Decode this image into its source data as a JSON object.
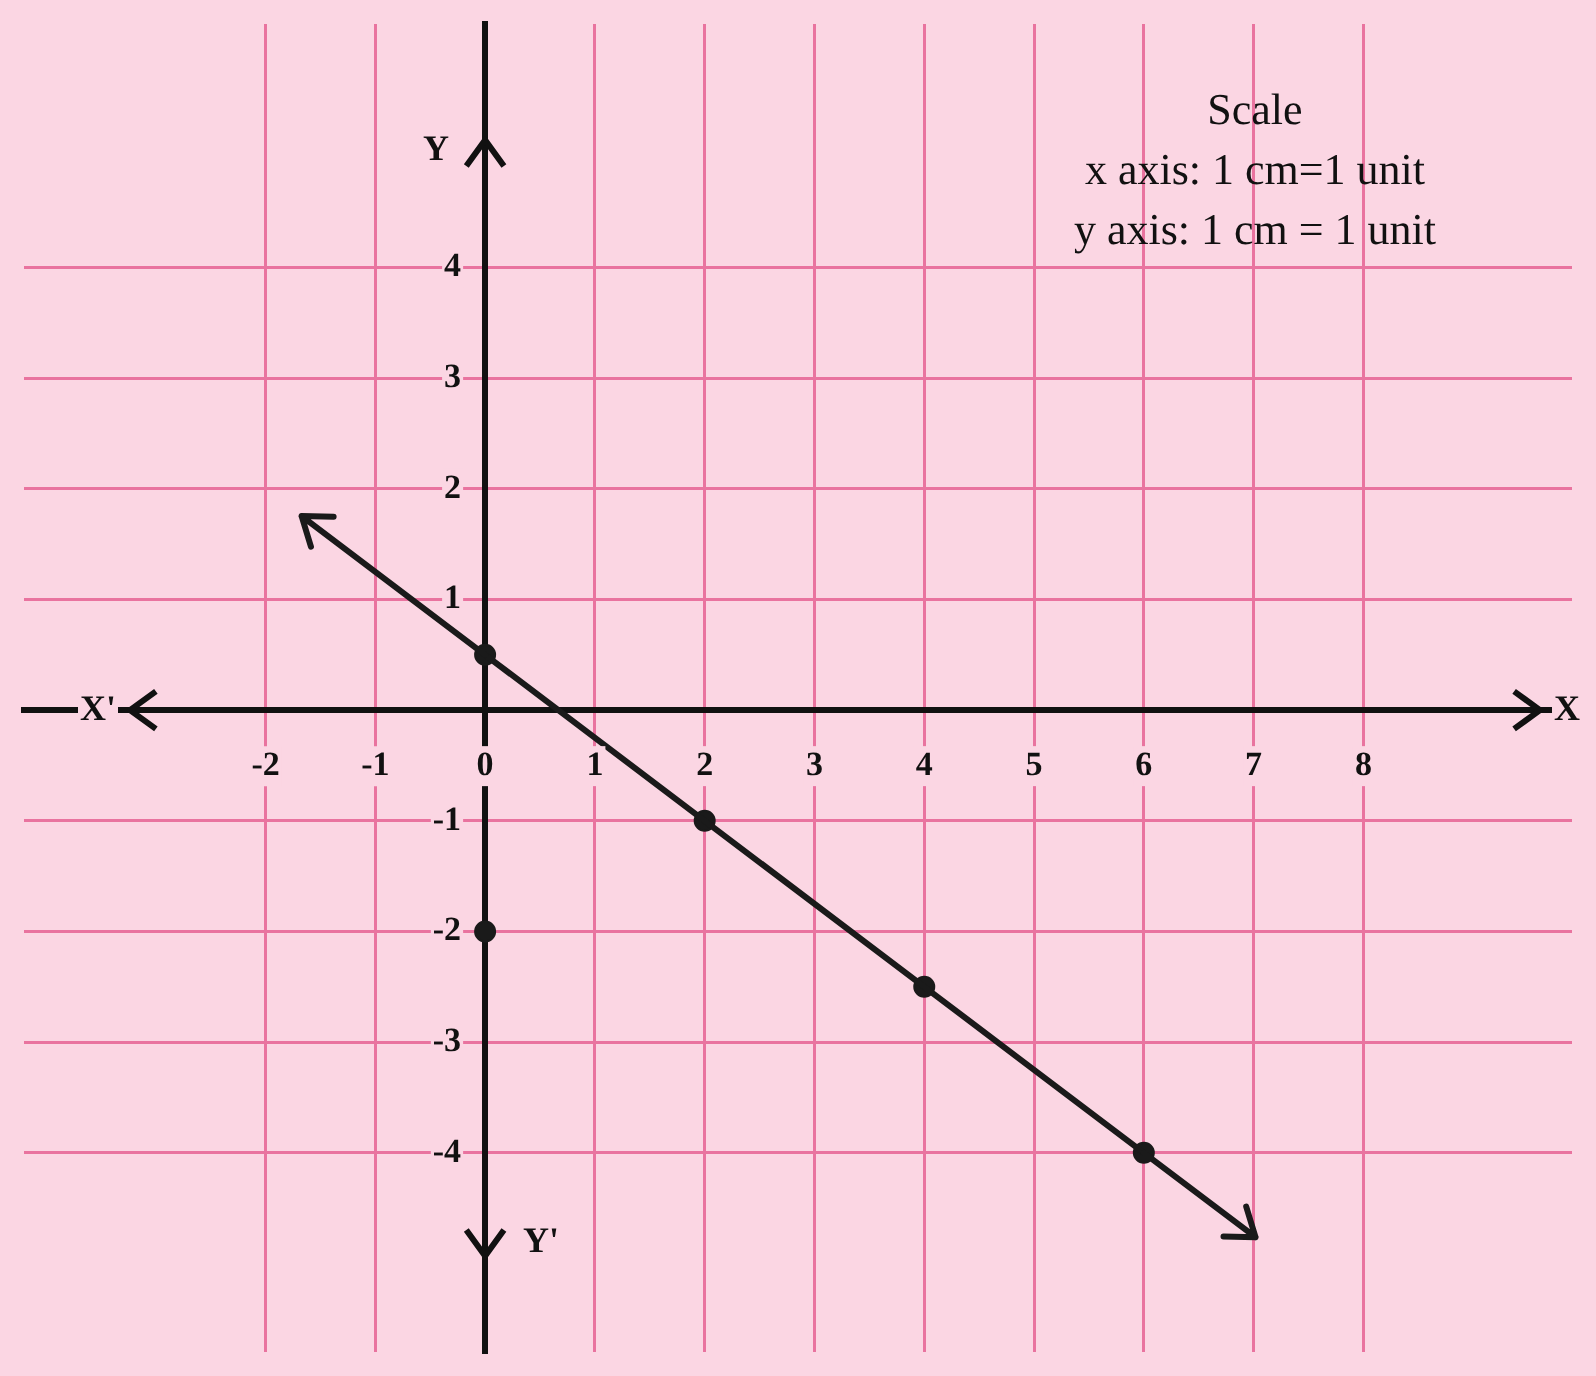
{
  "chart_data": {
    "type": "line",
    "xlabel": "X",
    "ylabel": "Y",
    "annotations": [
      "X'",
      "Y'",
      "Scale",
      "x axis: 1 cm=1 unit",
      "y axis: 1 cm = 1 unit"
    ],
    "xlim": [
      -4.2,
      9.9
    ],
    "ylim": [
      -5.8,
      6.2
    ],
    "xticks": [
      -2,
      -1,
      0,
      1,
      2,
      3,
      4,
      5,
      6,
      7,
      8
    ],
    "yticks": [
      -4,
      -3,
      -2,
      -1,
      1,
      2,
      3,
      4
    ],
    "grid": true,
    "legend": false,
    "marker": "circle",
    "series": [
      {
        "type": "line",
        "color": "#1a1a1a",
        "marker": "none",
        "x": [
          0,
          2,
          4,
          6
        ],
        "values": [
          0.5,
          -1,
          -2.5,
          -4
        ]
      },
      {
        "type": "scatter",
        "color": "#1a1a1a",
        "x": [
          0,
          2,
          4,
          6,
          0
        ],
        "values": [
          0.5,
          -1,
          -2.5,
          -4,
          -2
        ]
      }
    ]
  }
}
